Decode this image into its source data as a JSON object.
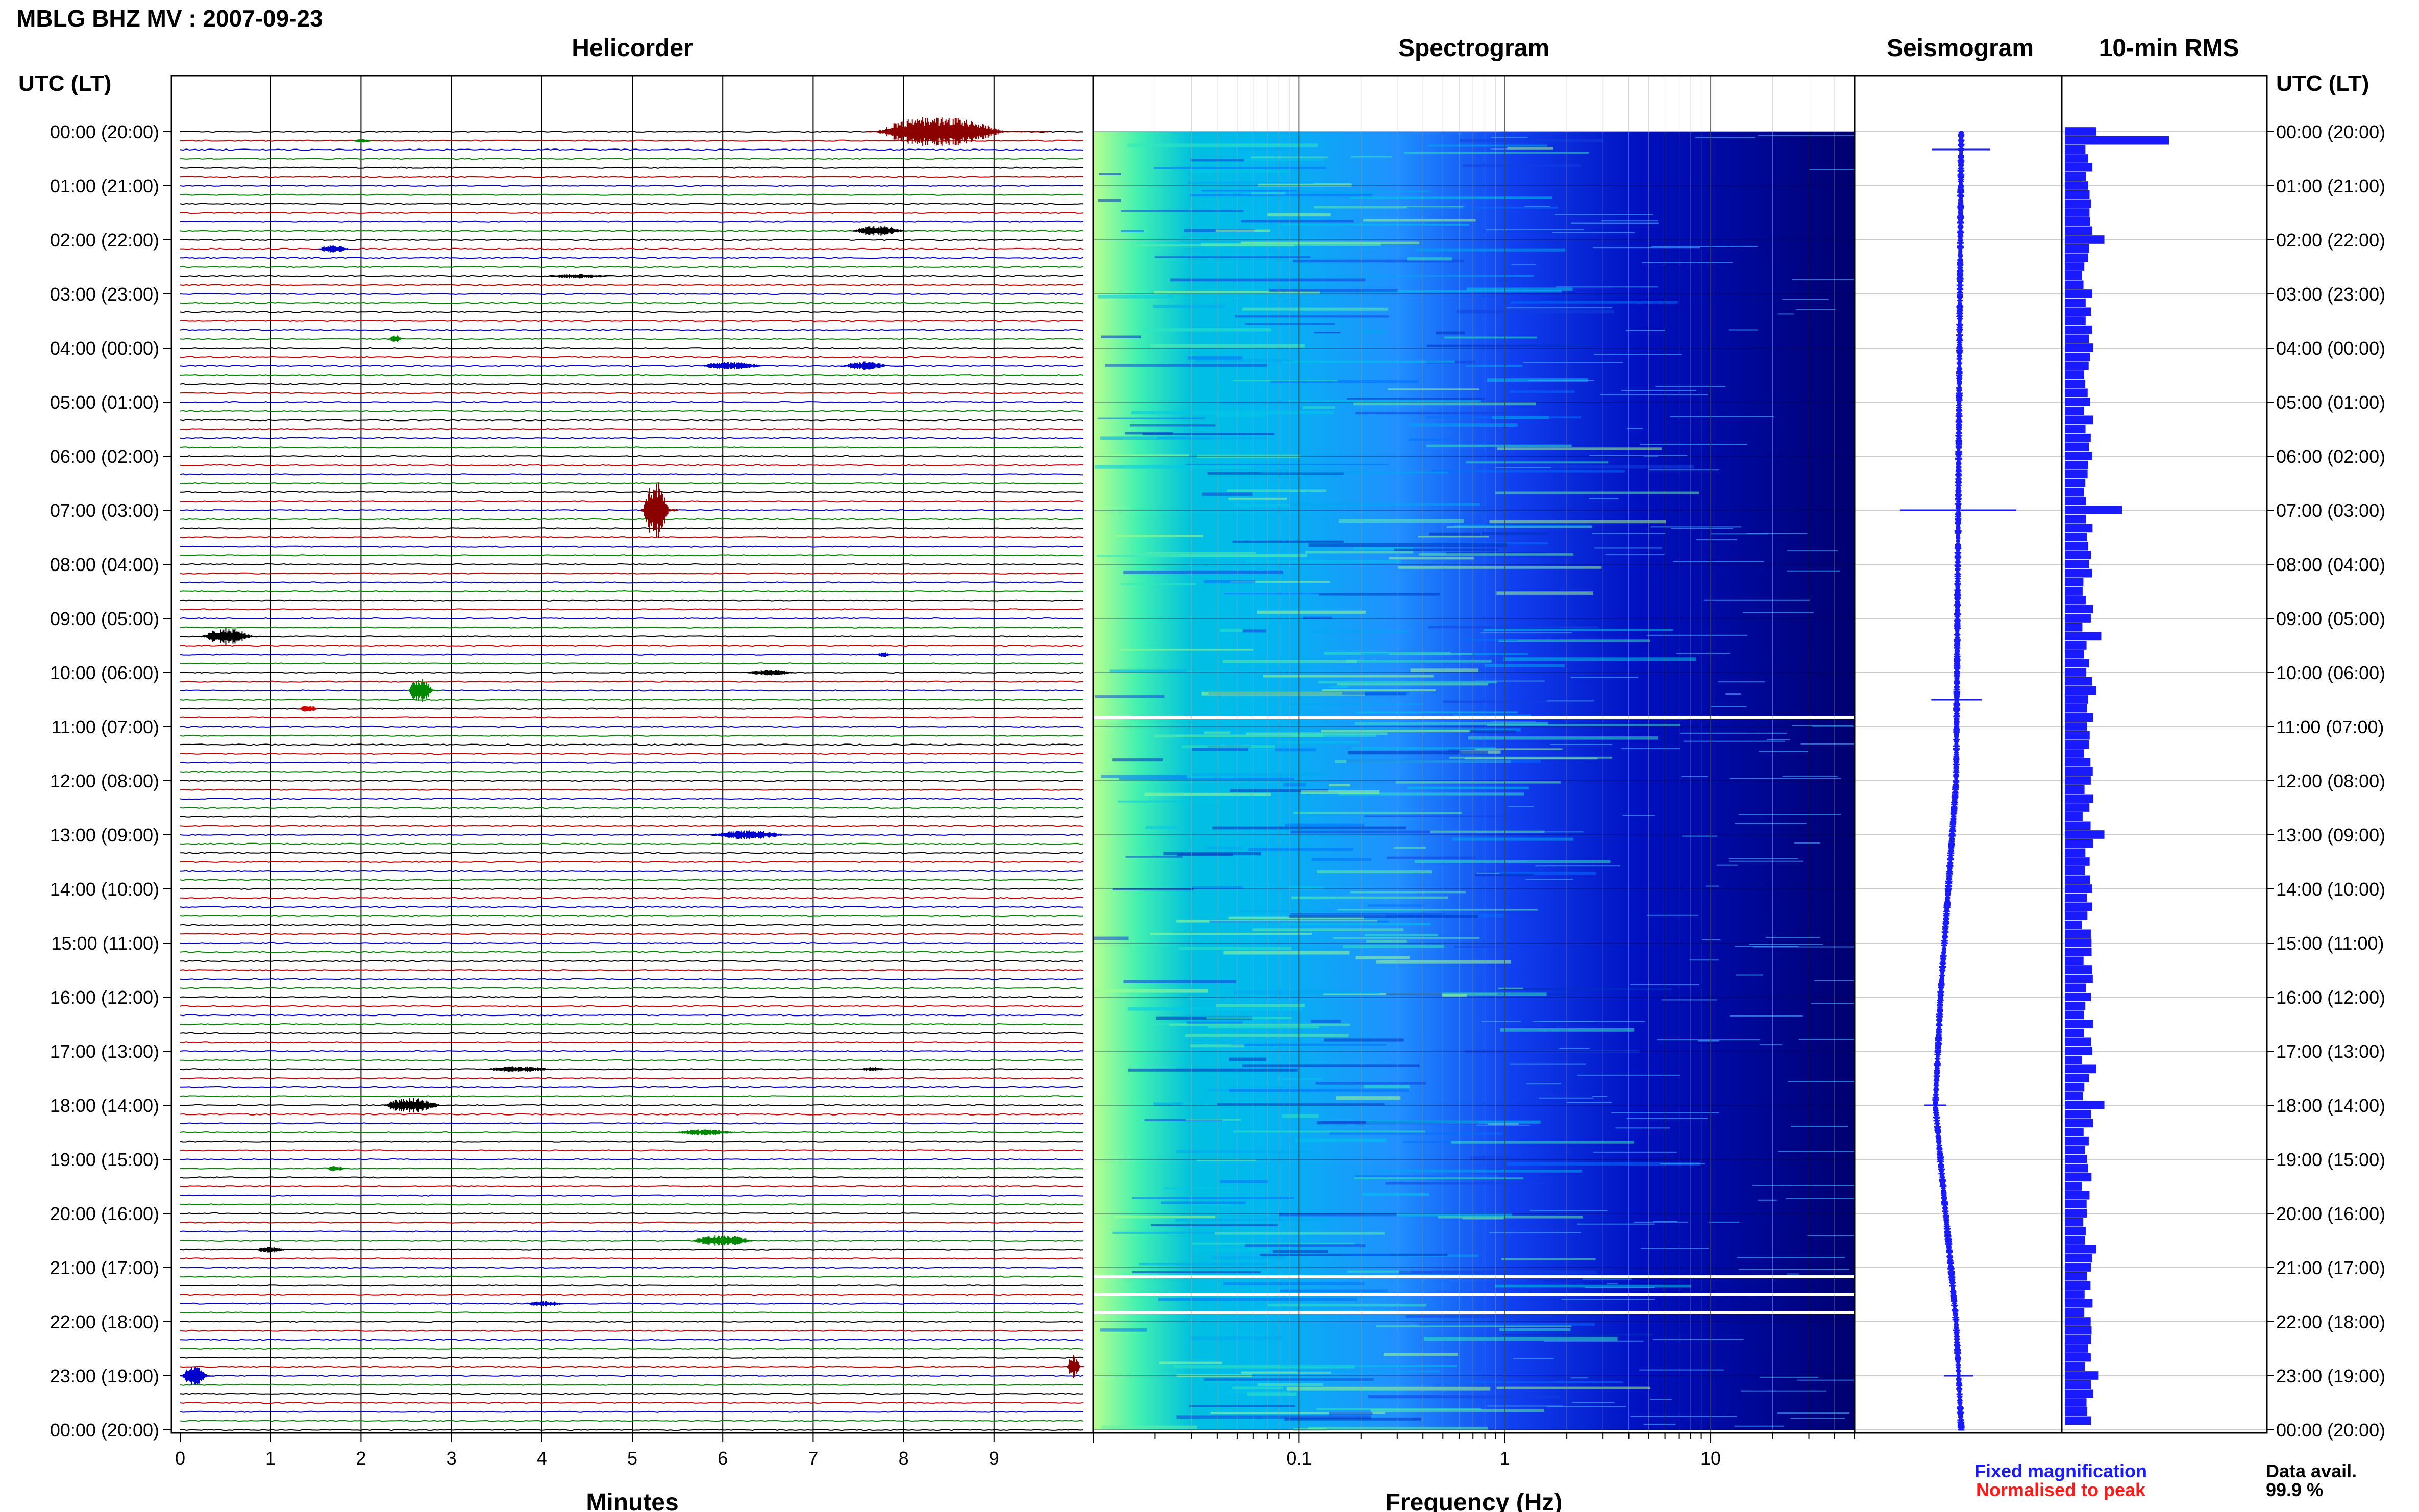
{
  "header": {
    "station_title": "MBLG BHZ MV : 2007-09-23"
  },
  "panels": {
    "helicorder_title": "Helicorder",
    "spectrogram_title": "Spectrogram",
    "seismogram_title": "Seismogram",
    "rms_title": "10-min RMS"
  },
  "axes": {
    "left_axis_header": "UTC (LT)",
    "right_axis_header": "UTC (LT)",
    "time_labels": [
      "00:00 (20:00)",
      "01:00 (21:00)",
      "02:00 (22:00)",
      "03:00 (23:00)",
      "04:00 (00:00)",
      "05:00 (01:00)",
      "06:00 (02:00)",
      "07:00 (03:00)",
      "08:00 (04:00)",
      "09:00 (05:00)",
      "10:00 (06:00)",
      "11:00 (07:00)",
      "12:00 (08:00)",
      "13:00 (09:00)",
      "14:00 (10:00)",
      "15:00 (11:00)",
      "16:00 (12:00)",
      "17:00 (13:00)",
      "18:00 (14:00)",
      "19:00 (15:00)",
      "20:00 (16:00)",
      "21:00 (17:00)",
      "22:00 (18:00)",
      "23:00 (19:00)",
      "00:00 (20:00)"
    ],
    "minutes_label": "Minutes",
    "minutes_ticks": [
      "0",
      "1",
      "2",
      "3",
      "4",
      "5",
      "6",
      "7",
      "8",
      "9"
    ],
    "frequency_label": "Frequency (Hz)",
    "frequency_ticks": [
      "0.1",
      "1",
      "10"
    ]
  },
  "legend": {
    "fixed_label": "Fixed magnification",
    "normalised_label": "Normalised to peak",
    "fixed_color": "#1a1aff",
    "normalised_color": "#ff1a1a"
  },
  "availability": {
    "label": "Data avail.",
    "value": "99.9 %"
  },
  "chart_data": [
    {
      "type": "line",
      "title": "Helicorder",
      "xlabel": "Minutes",
      "xlim": [
        0,
        10
      ],
      "trace_colors": [
        "#000000",
        "#cc0000",
        "#0000cc",
        "#008800"
      ],
      "events": [
        {
          "hour": 0.0,
          "minute_start": 7.6,
          "minute_end": 9.6,
          "amplitude": 1.0,
          "color": "#8b0000"
        },
        {
          "hour": 0.17,
          "minute_start": 1.9,
          "minute_end": 2.2,
          "amplitude": 0.15,
          "color": "#008800"
        },
        {
          "hour": 1.83,
          "minute_start": 7.4,
          "minute_end": 8.2,
          "amplitude": 0.35,
          "color": "#000000"
        },
        {
          "hour": 2.17,
          "minute_start": 1.5,
          "minute_end": 2.0,
          "amplitude": 0.25,
          "color": "#0000cc"
        },
        {
          "hour": 2.67,
          "minute_start": 4.0,
          "minute_end": 5.0,
          "amplitude": 0.15,
          "color": "#000000"
        },
        {
          "hour": 3.83,
          "minute_start": 2.3,
          "minute_end": 2.5,
          "amplitude": 0.3,
          "color": "#008800"
        },
        {
          "hour": 4.33,
          "minute_start": 5.7,
          "minute_end": 6.7,
          "amplitude": 0.25,
          "color": "#0000cc"
        },
        {
          "hour": 4.33,
          "minute_start": 7.3,
          "minute_end": 8.0,
          "amplitude": 0.3,
          "color": "#0000cc"
        },
        {
          "hour": 7.0,
          "minute_start": 5.1,
          "minute_end": 5.5,
          "amplitude": 2.0,
          "color": "#8b0000"
        },
        {
          "hour": 9.33,
          "minute_start": 0.2,
          "minute_end": 1.0,
          "amplitude": 0.55,
          "color": "#000000"
        },
        {
          "hour": 9.67,
          "minute_start": 7.7,
          "minute_end": 7.9,
          "amplitude": 0.2,
          "color": "#0000cc"
        },
        {
          "hour": 10.0,
          "minute_start": 6.2,
          "minute_end": 7.0,
          "amplitude": 0.2,
          "color": "#000000"
        },
        {
          "hour": 10.33,
          "minute_start": 2.5,
          "minute_end": 2.9,
          "amplitude": 0.8,
          "color": "#008800"
        },
        {
          "hour": 10.67,
          "minute_start": 1.3,
          "minute_end": 1.6,
          "amplitude": 0.25,
          "color": "#cc0000"
        },
        {
          "hour": 13.0,
          "minute_start": 5.8,
          "minute_end": 7.0,
          "amplitude": 0.3,
          "color": "#0000cc"
        },
        {
          "hour": 17.33,
          "minute_start": 3.3,
          "minute_end": 4.4,
          "amplitude": 0.2,
          "color": "#000000"
        },
        {
          "hour": 17.33,
          "minute_start": 7.5,
          "minute_end": 7.9,
          "amplitude": 0.15,
          "color": "#000000"
        },
        {
          "hour": 18.0,
          "minute_start": 2.2,
          "minute_end": 3.1,
          "amplitude": 0.5,
          "color": "#000000"
        },
        {
          "hour": 18.5,
          "minute_start": 5.4,
          "minute_end": 6.4,
          "amplitude": 0.2,
          "color": "#008800"
        },
        {
          "hour": 19.17,
          "minute_start": 1.6,
          "minute_end": 1.9,
          "amplitude": 0.2,
          "color": "#008800"
        },
        {
          "hour": 20.5,
          "minute_start": 5.6,
          "minute_end": 6.6,
          "amplitude": 0.35,
          "color": "#008800"
        },
        {
          "hour": 20.67,
          "minute_start": 0.8,
          "minute_end": 1.3,
          "amplitude": 0.2,
          "color": "#000000"
        },
        {
          "hour": 21.67,
          "minute_start": 3.8,
          "minute_end": 4.4,
          "amplitude": 0.2,
          "color": "#0000cc"
        },
        {
          "hour": 23.0,
          "minute_start": 0.0,
          "minute_end": 0.4,
          "amplitude": 0.8,
          "color": "#0000cc"
        },
        {
          "hour": 22.83,
          "minute_start": 9.8,
          "minute_end": 10.0,
          "amplitude": 0.8,
          "color": "#8b0000"
        }
      ]
    },
    {
      "type": "heatmap",
      "title": "Spectrogram",
      "xlabel": "Frequency (Hz)",
      "xscale": "log",
      "xlim": [
        0.01,
        50
      ],
      "ylim_hours": [
        0,
        24
      ],
      "colormap": [
        "#e6ff80",
        "#40ffa0",
        "#00c8e0",
        "#0060ff",
        "#0010c0",
        "#000060"
      ],
      "data_gaps_hours": [
        10.83,
        21.17,
        21.5,
        21.83
      ]
    },
    {
      "type": "line",
      "title": "Seismogram",
      "ylim_hours": [
        0,
        24
      ],
      "drift": [
        {
          "hour": 0,
          "offset": 0
        },
        {
          "hour": 12,
          "offset": -0.05
        },
        {
          "hour": 16,
          "offset": -0.2
        },
        {
          "hour": 18,
          "offset": -0.25
        },
        {
          "hour": 21,
          "offset": -0.1
        },
        {
          "hour": 22,
          "offset": -0.05
        },
        {
          "hour": 24,
          "offset": 0
        }
      ],
      "spikes": [
        {
          "hour": 0.33,
          "amplitude": 0.4
        },
        {
          "hour": 7.0,
          "amplitude": 0.8
        },
        {
          "hour": 10.5,
          "amplitude": 0.35
        },
        {
          "hour": 23.0,
          "amplitude": 0.2
        },
        {
          "hour": 18.0,
          "amplitude": 0.15
        }
      ]
    },
    {
      "type": "bar",
      "title": "10-min RMS",
      "orientation": "horizontal",
      "ylim_hours": [
        0,
        24
      ],
      "baseline": 0.22,
      "peaks": [
        {
          "hour": 0.0,
          "value": 0.3
        },
        {
          "hour": 0.17,
          "value": 1.0
        },
        {
          "hour": 2.0,
          "value": 0.38
        },
        {
          "hour": 7.0,
          "value": 0.55
        },
        {
          "hour": 9.33,
          "value": 0.35
        },
        {
          "hour": 10.33,
          "value": 0.3
        },
        {
          "hour": 13.0,
          "value": 0.38
        },
        {
          "hour": 17.33,
          "value": 0.3
        },
        {
          "hour": 18.0,
          "value": 0.38
        },
        {
          "hour": 20.67,
          "value": 0.3
        },
        {
          "hour": 23.0,
          "value": 0.32
        }
      ]
    }
  ]
}
